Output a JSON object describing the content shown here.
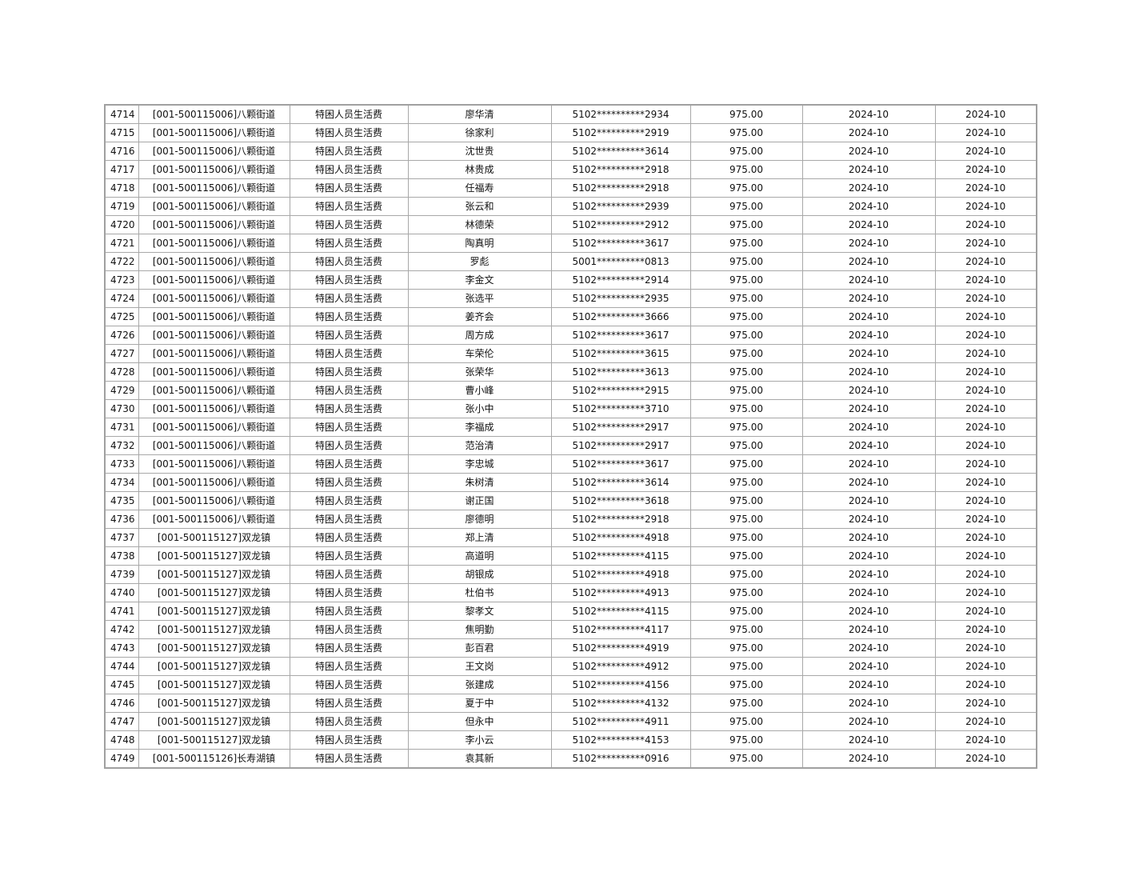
{
  "table": {
    "rows": [
      [
        "4714",
        "[001-500115006]八颗街道",
        "特困人员生活费",
        "廖华清",
        "5102**********2934",
        "975.00",
        "2024-10",
        "2024-10"
      ],
      [
        "4715",
        "[001-500115006]八颗街道",
        "特困人员生活费",
        "徐家利",
        "5102**********2919",
        "975.00",
        "2024-10",
        "2024-10"
      ],
      [
        "4716",
        "[001-500115006]八颗街道",
        "特困人员生活费",
        "沈世贵",
        "5102**********3614",
        "975.00",
        "2024-10",
        "2024-10"
      ],
      [
        "4717",
        "[001-500115006]八颗街道",
        "特困人员生活费",
        "林贵成",
        "5102**********2918",
        "975.00",
        "2024-10",
        "2024-10"
      ],
      [
        "4718",
        "[001-500115006]八颗街道",
        "特困人员生活费",
        "任福寿",
        "5102**********2918",
        "975.00",
        "2024-10",
        "2024-10"
      ],
      [
        "4719",
        "[001-500115006]八颗街道",
        "特困人员生活费",
        "张云和",
        "5102**********2939",
        "975.00",
        "2024-10",
        "2024-10"
      ],
      [
        "4720",
        "[001-500115006]八颗街道",
        "特困人员生活费",
        "林德荣",
        "5102**********2912",
        "975.00",
        "2024-10",
        "2024-10"
      ],
      [
        "4721",
        "[001-500115006]八颗街道",
        "特困人员生活费",
        "陶真明",
        "5102**********3617",
        "975.00",
        "2024-10",
        "2024-10"
      ],
      [
        "4722",
        "[001-500115006]八颗街道",
        "特困人员生活费",
        "罗彪",
        "5001**********0813",
        "975.00",
        "2024-10",
        "2024-10"
      ],
      [
        "4723",
        "[001-500115006]八颗街道",
        "特困人员生活费",
        "李金文",
        "5102**********2914",
        "975.00",
        "2024-10",
        "2024-10"
      ],
      [
        "4724",
        "[001-500115006]八颗街道",
        "特困人员生活费",
        "张选平",
        "5102**********2935",
        "975.00",
        "2024-10",
        "2024-10"
      ],
      [
        "4725",
        "[001-500115006]八颗街道",
        "特困人员生活费",
        "姜齐会",
        "5102**********3666",
        "975.00",
        "2024-10",
        "2024-10"
      ],
      [
        "4726",
        "[001-500115006]八颗街道",
        "特困人员生活费",
        "周方成",
        "5102**********3617",
        "975.00",
        "2024-10",
        "2024-10"
      ],
      [
        "4727",
        "[001-500115006]八颗街道",
        "特困人员生活费",
        "车荣伦",
        "5102**********3615",
        "975.00",
        "2024-10",
        "2024-10"
      ],
      [
        "4728",
        "[001-500115006]八颗街道",
        "特困人员生活费",
        "张荣华",
        "5102**********3613",
        "975.00",
        "2024-10",
        "2024-10"
      ],
      [
        "4729",
        "[001-500115006]八颗街道",
        "特困人员生活费",
        "曹小峰",
        "5102**********2915",
        "975.00",
        "2024-10",
        "2024-10"
      ],
      [
        "4730",
        "[001-500115006]八颗街道",
        "特困人员生活费",
        "张小中",
        "5102**********3710",
        "975.00",
        "2024-10",
        "2024-10"
      ],
      [
        "4731",
        "[001-500115006]八颗街道",
        "特困人员生活费",
        "李福成",
        "5102**********2917",
        "975.00",
        "2024-10",
        "2024-10"
      ],
      [
        "4732",
        "[001-500115006]八颗街道",
        "特困人员生活费",
        "范治清",
        "5102**********2917",
        "975.00",
        "2024-10",
        "2024-10"
      ],
      [
        "4733",
        "[001-500115006]八颗街道",
        "特困人员生活费",
        "李忠城",
        "5102**********3617",
        "975.00",
        "2024-10",
        "2024-10"
      ],
      [
        "4734",
        "[001-500115006]八颗街道",
        "特困人员生活费",
        "朱树清",
        "5102**********3614",
        "975.00",
        "2024-10",
        "2024-10"
      ],
      [
        "4735",
        "[001-500115006]八颗街道",
        "特困人员生活费",
        "谢正国",
        "5102**********3618",
        "975.00",
        "2024-10",
        "2024-10"
      ],
      [
        "4736",
        "[001-500115006]八颗街道",
        "特困人员生活费",
        "廖德明",
        "5102**********2918",
        "975.00",
        "2024-10",
        "2024-10"
      ],
      [
        "4737",
        "[001-500115127]双龙镇",
        "特困人员生活费",
        "郑上清",
        "5102**********4918",
        "975.00",
        "2024-10",
        "2024-10"
      ],
      [
        "4738",
        "[001-500115127]双龙镇",
        "特困人员生活费",
        "高道明",
        "5102**********4115",
        "975.00",
        "2024-10",
        "2024-10"
      ],
      [
        "4739",
        "[001-500115127]双龙镇",
        "特困人员生活费",
        "胡银成",
        "5102**********4918",
        "975.00",
        "2024-10",
        "2024-10"
      ],
      [
        "4740",
        "[001-500115127]双龙镇",
        "特困人员生活费",
        "杜伯书",
        "5102**********4913",
        "975.00",
        "2024-10",
        "2024-10"
      ],
      [
        "4741",
        "[001-500115127]双龙镇",
        "特困人员生活费",
        "黎孝文",
        "5102**********4115",
        "975.00",
        "2024-10",
        "2024-10"
      ],
      [
        "4742",
        "[001-500115127]双龙镇",
        "特困人员生活费",
        "焦明勤",
        "5102**********4117",
        "975.00",
        "2024-10",
        "2024-10"
      ],
      [
        "4743",
        "[001-500115127]双龙镇",
        "特困人员生活费",
        "彭百君",
        "5102**********4919",
        "975.00",
        "2024-10",
        "2024-10"
      ],
      [
        "4744",
        "[001-500115127]双龙镇",
        "特困人员生活费",
        "王文岗",
        "5102**********4912",
        "975.00",
        "2024-10",
        "2024-10"
      ],
      [
        "4745",
        "[001-500115127]双龙镇",
        "特困人员生活费",
        "张建成",
        "5102**********4156",
        "975.00",
        "2024-10",
        "2024-10"
      ],
      [
        "4746",
        "[001-500115127]双龙镇",
        "特困人员生活费",
        "夏于中",
        "5102**********4132",
        "975.00",
        "2024-10",
        "2024-10"
      ],
      [
        "4747",
        "[001-500115127]双龙镇",
        "特困人员生活费",
        "但永中",
        "5102**********4911",
        "975.00",
        "2024-10",
        "2024-10"
      ],
      [
        "4748",
        "[001-500115127]双龙镇",
        "特困人员生活费",
        "李小云",
        "5102**********4153",
        "975.00",
        "2024-10",
        "2024-10"
      ],
      [
        "4749",
        "[001-500115126]长寿湖镇",
        "特困人员生活费",
        "袁其新",
        "5102**********0916",
        "975.00",
        "2024-10",
        "2024-10"
      ]
    ]
  }
}
